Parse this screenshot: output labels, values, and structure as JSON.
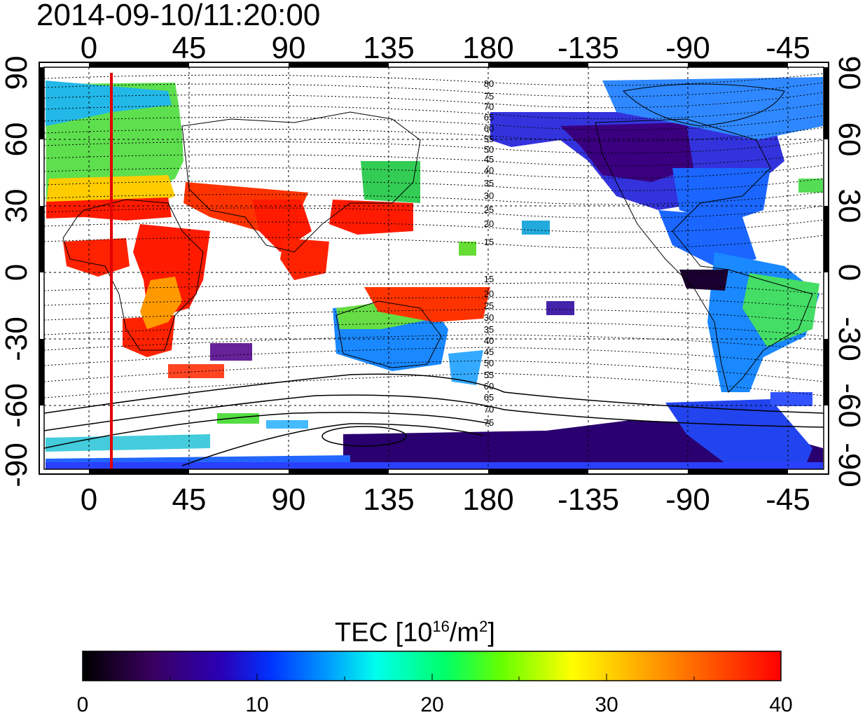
{
  "title": "2014-09-10/11:20:00",
  "map": {
    "x_tick_labels": [
      "0",
      "45",
      "90",
      "135",
      "180",
      "-135",
      "-90",
      "-45"
    ],
    "y_tick_labels": [
      "90",
      "60",
      "30",
      "0",
      "-30",
      "-60",
      "-90"
    ],
    "colors": {
      "frame": "#000000",
      "grid": "#000000",
      "terminator": "#ff0000",
      "coastline": "#000000"
    },
    "contour_labels_north": [
      "80",
      "75",
      "70",
      "65",
      "60",
      "55",
      "50",
      "45",
      "40",
      "35",
      "30",
      "25",
      "20",
      "15"
    ],
    "contour_labels_south": [
      "15",
      "20",
      "25",
      "30",
      "35",
      "40",
      "45",
      "50",
      "55",
      "60",
      "65",
      "70",
      "75"
    ]
  },
  "colorbar": {
    "label_prefix": "TEC  [10",
    "label_exp": "16",
    "label_mid": "/m",
    "label_exp2": "2",
    "label_suffix": "]",
    "tick_labels": [
      "0",
      "10",
      "20",
      "30",
      "40"
    ],
    "range": [
      0,
      40
    ],
    "stops": [
      "#000000",
      "#3a0060",
      "#2a00b8",
      "#0033ff",
      "#0099ff",
      "#00ffee",
      "#00ff66",
      "#66ff00",
      "#ffff00",
      "#ff9900",
      "#ff0000"
    ]
  }
}
